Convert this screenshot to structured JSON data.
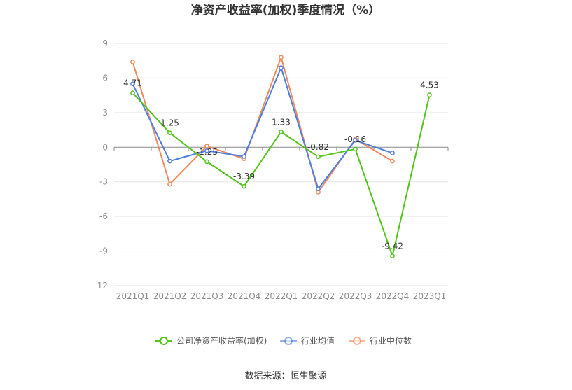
{
  "chart_data": {
    "type": "line",
    "title": "净资产收益率(加权)季度情况（%）",
    "categories": [
      "2021Q1",
      "2021Q2",
      "2021Q3",
      "2021Q4",
      "2022Q1",
      "2022Q2",
      "2022Q3",
      "2022Q4",
      "2023Q1"
    ],
    "y_ticks": [
      "9",
      "6",
      "3",
      "0",
      "-3",
      "-6",
      "-9",
      "-12"
    ],
    "ylim": [
      -12,
      9
    ],
    "grid": true,
    "legend_position": "bottom",
    "series": [
      {
        "name": "公司净资产收益率(加权)",
        "color": "#52c41a",
        "values": [
          4.71,
          1.25,
          -1.25,
          -3.39,
          1.33,
          -0.82,
          -0.16,
          -9.42,
          4.53
        ],
        "labels": [
          "4.71",
          "1.25",
          "-1.25",
          "-3.39",
          "1.33",
          "-0.82",
          "-0.16",
          "-9.42",
          "4.53"
        ]
      },
      {
        "name": "行业均值",
        "color": "#4e7ee0",
        "values": [
          5.5,
          -1.2,
          -0.3,
          -0.8,
          6.9,
          -3.6,
          0.6,
          -0.5,
          null
        ]
      },
      {
        "name": "行业中位数",
        "color": "#f08a5d",
        "values": [
          7.4,
          -3.2,
          0.1,
          -1.0,
          7.8,
          -3.9,
          0.7,
          -1.2,
          null
        ]
      }
    ]
  },
  "source_text": "数据来源：恒生聚源"
}
